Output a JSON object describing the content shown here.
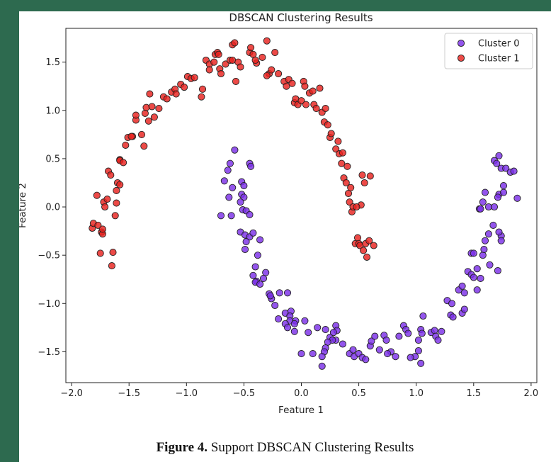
{
  "caption": {
    "label": "Figure 4.",
    "text": "Support DBSCAN Clustering Results"
  },
  "colors": {
    "background": "#2d6a4f",
    "cluster_0": "#7b2fe8",
    "cluster_1": "#e8221f",
    "marker_edge": "#222222"
  },
  "chart_data": {
    "type": "scatter",
    "title": "DBSCAN Clustering Results",
    "xlabel": "Feature 1",
    "ylabel": "Feature 2",
    "xlim": [
      -2.05,
      2.05
    ],
    "ylim": [
      -1.82,
      1.85
    ],
    "xticks": [
      -2.0,
      -1.5,
      -1.0,
      -0.5,
      0.0,
      0.5,
      1.0,
      1.5,
      2.0
    ],
    "xtick_labels": [
      "−2.0",
      "−1.5",
      "−1.0",
      "−0.5",
      "0.0",
      "0.5",
      "1.0",
      "1.5",
      "2.0"
    ],
    "yticks": [
      -1.5,
      -1.0,
      -0.5,
      0.0,
      0.5,
      1.0,
      1.5
    ],
    "ytick_labels": [
      "−1.5",
      "−1.0",
      "−0.5",
      "0.0",
      "0.5",
      "1.0",
      "1.5"
    ],
    "grid": false,
    "legend_position": "top-right",
    "series": [
      {
        "name": "Cluster 0",
        "color": "#7b2fe8",
        "points": [
          [
            -0.62,
            0.45
          ],
          [
            -0.58,
            0.59
          ],
          [
            -0.64,
            0.38
          ],
          [
            -0.67,
            0.27
          ],
          [
            -0.6,
            0.2
          ],
          [
            -0.63,
            0.1
          ],
          [
            -0.7,
            -0.09
          ],
          [
            -0.61,
            -0.09
          ],
          [
            -0.45,
            0.45
          ],
          [
            -0.44,
            0.42
          ],
          [
            -0.52,
            0.26
          ],
          [
            -0.5,
            0.22
          ],
          [
            -0.52,
            0.13
          ],
          [
            -0.5,
            0.1
          ],
          [
            -0.53,
            0.05
          ],
          [
            -0.51,
            -0.03
          ],
          [
            -0.48,
            -0.04
          ],
          [
            -0.45,
            -0.08
          ],
          [
            -0.53,
            -0.26
          ],
          [
            -0.49,
            -0.29
          ],
          [
            -0.45,
            -0.31
          ],
          [
            -0.48,
            -0.36
          ],
          [
            -0.42,
            -0.27
          ],
          [
            -0.49,
            -0.44
          ],
          [
            -0.36,
            -0.34
          ],
          [
            -0.38,
            -0.5
          ],
          [
            -0.4,
            -0.62
          ],
          [
            -0.42,
            -0.71
          ],
          [
            -0.39,
            -0.77
          ],
          [
            -0.4,
            -0.78
          ],
          [
            -0.36,
            -0.8
          ],
          [
            -0.31,
            -0.68
          ],
          [
            -0.33,
            -0.74
          ],
          [
            -0.28,
            -0.9
          ],
          [
            -0.26,
            -0.95
          ],
          [
            -0.27,
            -0.92
          ],
          [
            -0.19,
            -0.89
          ],
          [
            -0.12,
            -0.89
          ],
          [
            -0.23,
            -1.02
          ],
          [
            -0.2,
            -1.16
          ],
          [
            -0.14,
            -1.1
          ],
          [
            -0.09,
            -1.08
          ],
          [
            -0.1,
            -1.13
          ],
          [
            -0.1,
            -1.18
          ],
          [
            -0.14,
            -1.21
          ],
          [
            -0.12,
            -1.25
          ],
          [
            -0.05,
            -1.18
          ],
          [
            -0.06,
            -1.21
          ],
          [
            0.03,
            -1.18
          ],
          [
            -0.06,
            -1.29
          ],
          [
            0.06,
            -1.3
          ],
          [
            0.14,
            -1.25
          ],
          [
            0.21,
            -1.27
          ],
          [
            0.25,
            -1.35
          ],
          [
            0.3,
            -1.23
          ],
          [
            0.31,
            -1.28
          ],
          [
            0.28,
            -1.3
          ],
          [
            0.3,
            -1.38
          ],
          [
            0.27,
            -1.38
          ],
          [
            0.23,
            -1.4
          ],
          [
            0.21,
            -1.46
          ],
          [
            0.2,
            -1.5
          ],
          [
            0.0,
            -1.52
          ],
          [
            0.1,
            -1.52
          ],
          [
            0.18,
            -1.55
          ],
          [
            0.18,
            -1.65
          ],
          [
            0.36,
            -1.42
          ],
          [
            0.42,
            -1.52
          ],
          [
            0.45,
            -1.48
          ],
          [
            0.46,
            -1.55
          ],
          [
            0.5,
            -1.52
          ],
          [
            0.53,
            -1.56
          ],
          [
            0.56,
            -1.58
          ],
          [
            0.6,
            -1.44
          ],
          [
            0.61,
            -1.39
          ],
          [
            0.64,
            -1.34
          ],
          [
            0.68,
            -1.48
          ],
          [
            0.72,
            -1.33
          ],
          [
            0.74,
            -1.38
          ],
          [
            0.78,
            -1.5
          ],
          [
            0.75,
            -1.52
          ],
          [
            0.82,
            -1.55
          ],
          [
            0.85,
            -1.34
          ],
          [
            0.89,
            -1.23
          ],
          [
            0.91,
            -1.27
          ],
          [
            0.93,
            -1.31
          ],
          [
            0.99,
            -1.55
          ],
          [
            0.95,
            -1.56
          ],
          [
            1.04,
            -1.62
          ],
          [
            1.02,
            -1.49
          ],
          [
            1.04,
            -1.27
          ],
          [
            1.05,
            -1.31
          ],
          [
            1.06,
            -1.13
          ],
          [
            1.02,
            -1.38
          ],
          [
            1.13,
            -1.3
          ],
          [
            1.16,
            -1.28
          ],
          [
            1.17,
            -1.34
          ],
          [
            1.19,
            -1.38
          ],
          [
            1.22,
            -1.29
          ],
          [
            1.27,
            -0.97
          ],
          [
            1.3,
            -1.12
          ],
          [
            1.32,
            -1.14
          ],
          [
            1.31,
            -1.0
          ],
          [
            1.37,
            -0.86
          ],
          [
            1.4,
            -0.82
          ],
          [
            1.42,
            -0.89
          ],
          [
            1.4,
            -1.1
          ],
          [
            1.42,
            -1.06
          ],
          [
            1.45,
            -0.67
          ],
          [
            1.48,
            -0.7
          ],
          [
            1.5,
            -0.73
          ],
          [
            1.53,
            -0.86
          ],
          [
            1.48,
            -0.48
          ],
          [
            1.5,
            -0.48
          ],
          [
            1.53,
            -0.64
          ],
          [
            1.56,
            -0.74
          ],
          [
            1.58,
            -0.5
          ],
          [
            1.59,
            -0.44
          ],
          [
            1.6,
            -0.35
          ],
          [
            1.63,
            -0.28
          ],
          [
            1.67,
            -0.19
          ],
          [
            1.64,
            -0.6
          ],
          [
            1.71,
            -0.66
          ],
          [
            1.74,
            -0.3
          ],
          [
            1.74,
            -0.35
          ],
          [
            1.72,
            -0.26
          ],
          [
            1.55,
            -0.02
          ],
          [
            1.58,
            0.05
          ],
          [
            1.6,
            0.15
          ],
          [
            1.63,
            0.0
          ],
          [
            1.68,
            0.0
          ],
          [
            1.72,
            0.13
          ],
          [
            1.71,
            0.1
          ],
          [
            1.76,
            0.15
          ],
          [
            1.76,
            0.22
          ],
          [
            1.74,
            0.4
          ],
          [
            1.68,
            0.48
          ],
          [
            1.72,
            0.53
          ],
          [
            1.7,
            0.45
          ],
          [
            1.78,
            0.4
          ],
          [
            1.82,
            0.36
          ],
          [
            1.85,
            0.37
          ],
          [
            1.88,
            0.09
          ],
          [
            1.56,
            -0.02
          ]
        ]
      },
      {
        "name": "Cluster 1",
        "color": "#e8221f",
        "points": [
          [
            -1.82,
            -0.22
          ],
          [
            -1.81,
            -0.17
          ],
          [
            -1.78,
            0.12
          ],
          [
            -1.75,
            -0.48
          ],
          [
            -1.77,
            -0.19
          ],
          [
            -1.74,
            -0.26
          ],
          [
            -1.73,
            -0.28
          ],
          [
            -1.73,
            -0.23
          ],
          [
            -1.72,
            0.05
          ],
          [
            -1.71,
            0.0
          ],
          [
            -1.69,
            0.08
          ],
          [
            -1.68,
            0.37
          ],
          [
            -1.66,
            0.33
          ],
          [
            -1.65,
            -0.61
          ],
          [
            -1.64,
            -0.47
          ],
          [
            -1.61,
            0.04
          ],
          [
            -1.62,
            -0.09
          ],
          [
            -1.6,
            0.25
          ],
          [
            -1.61,
            0.17
          ],
          [
            -1.58,
            0.49
          ],
          [
            -1.58,
            0.48
          ],
          [
            -1.58,
            0.23
          ],
          [
            -1.55,
            0.46
          ],
          [
            -1.53,
            0.64
          ],
          [
            -1.51,
            0.72
          ],
          [
            -1.47,
            0.73
          ],
          [
            -1.48,
            0.73
          ],
          [
            -1.44,
            0.9
          ],
          [
            -1.44,
            0.95
          ],
          [
            -1.39,
            0.75
          ],
          [
            -1.37,
            0.63
          ],
          [
            -1.36,
            0.97
          ],
          [
            -1.35,
            1.03
          ],
          [
            -1.33,
            0.89
          ],
          [
            -1.32,
            1.17
          ],
          [
            -1.3,
            1.04
          ],
          [
            -1.28,
            0.93
          ],
          [
            -1.24,
            1.02
          ],
          [
            -1.2,
            1.14
          ],
          [
            -1.17,
            1.12
          ],
          [
            -1.13,
            1.19
          ],
          [
            -1.1,
            1.22
          ],
          [
            -1.09,
            1.17
          ],
          [
            -1.05,
            1.27
          ],
          [
            -1.02,
            1.24
          ],
          [
            -0.99,
            1.35
          ],
          [
            -0.96,
            1.33
          ],
          [
            -0.93,
            1.34
          ],
          [
            -0.87,
            1.14
          ],
          [
            -0.86,
            1.22
          ],
          [
            -0.83,
            1.52
          ],
          [
            -0.8,
            1.48
          ],
          [
            -0.8,
            1.42
          ],
          [
            -0.76,
            1.5
          ],
          [
            -0.75,
            1.58
          ],
          [
            -0.73,
            1.6
          ],
          [
            -0.72,
            1.58
          ],
          [
            -0.71,
            1.43
          ],
          [
            -0.7,
            1.38
          ],
          [
            -0.66,
            1.48
          ],
          [
            -0.62,
            1.52
          ],
          [
            -0.6,
            1.52
          ],
          [
            -0.6,
            1.68
          ],
          [
            -0.58,
            1.7
          ],
          [
            -0.57,
            1.3
          ],
          [
            -0.55,
            1.5
          ],
          [
            -0.53,
            1.45
          ],
          [
            -0.45,
            1.6
          ],
          [
            -0.44,
            1.65
          ],
          [
            -0.42,
            1.58
          ],
          [
            -0.39,
            1.49
          ],
          [
            -0.4,
            1.52
          ],
          [
            -0.34,
            1.55
          ],
          [
            -0.3,
            1.72
          ],
          [
            -0.28,
            1.38
          ],
          [
            -0.3,
            1.36
          ],
          [
            -0.26,
            1.42
          ],
          [
            -0.23,
            1.6
          ],
          [
            -0.2,
            1.38
          ],
          [
            -0.15,
            1.3
          ],
          [
            -0.13,
            1.25
          ],
          [
            -0.11,
            1.32
          ],
          [
            -0.08,
            1.28
          ],
          [
            -0.06,
            1.08
          ],
          [
            -0.05,
            1.12
          ],
          [
            -0.03,
            1.06
          ],
          [
            0.0,
            1.1
          ],
          [
            0.02,
            1.3
          ],
          [
            0.03,
            1.25
          ],
          [
            0.04,
            1.06
          ],
          [
            0.07,
            1.18
          ],
          [
            0.1,
            1.2
          ],
          [
            0.11,
            1.06
          ],
          [
            0.13,
            1.02
          ],
          [
            0.16,
            1.23
          ],
          [
            0.18,
            0.98
          ],
          [
            0.2,
            0.88
          ],
          [
            0.21,
            1.02
          ],
          [
            0.23,
            0.85
          ],
          [
            0.25,
            0.72
          ],
          [
            0.26,
            0.76
          ],
          [
            0.3,
            0.6
          ],
          [
            0.32,
            0.68
          ],
          [
            0.33,
            0.55
          ],
          [
            0.35,
            0.45
          ],
          [
            0.36,
            0.56
          ],
          [
            0.37,
            0.3
          ],
          [
            0.39,
            0.25
          ],
          [
            0.4,
            0.42
          ],
          [
            0.41,
            0.14
          ],
          [
            0.42,
            0.05
          ],
          [
            0.43,
            0.2
          ],
          [
            0.44,
            -0.05
          ],
          [
            0.45,
            0.0
          ],
          [
            0.47,
            -0.38
          ],
          [
            0.49,
            -0.32
          ],
          [
            0.5,
            -0.38
          ],
          [
            0.51,
            -0.4
          ],
          [
            0.52,
            0.02
          ],
          [
            0.53,
            0.33
          ],
          [
            0.55,
            0.25
          ],
          [
            0.54,
            -0.45
          ],
          [
            0.56,
            -0.38
          ],
          [
            0.57,
            -0.52
          ],
          [
            0.59,
            -0.35
          ],
          [
            0.6,
            0.32
          ],
          [
            0.63,
            -0.4
          ],
          [
            0.48,
            0.0
          ]
        ]
      }
    ]
  }
}
